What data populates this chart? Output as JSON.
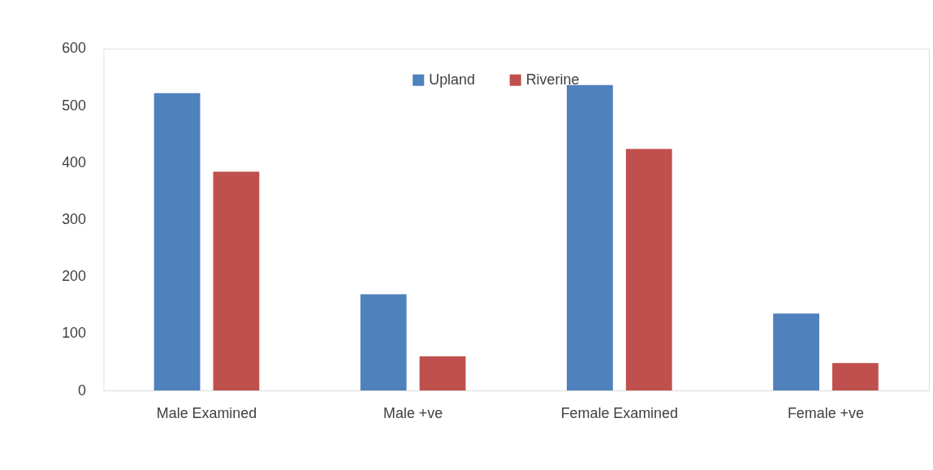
{
  "chart_data": {
    "type": "bar",
    "categories": [
      "Male Examined",
      "Male +ve",
      "Female Examined",
      "Female +ve"
    ],
    "series": [
      {
        "name": "Upland",
        "color": "#4f81bd",
        "values": [
          522,
          169,
          536,
          135
        ]
      },
      {
        "name": "Riverine",
        "color": "#c0504d",
        "values": [
          384,
          60,
          424,
          48
        ]
      }
    ],
    "ylim": [
      0,
      600
    ],
    "yticks": [
      0,
      100,
      200,
      300,
      400,
      500,
      600
    ],
    "grid": false,
    "legend": "top"
  }
}
